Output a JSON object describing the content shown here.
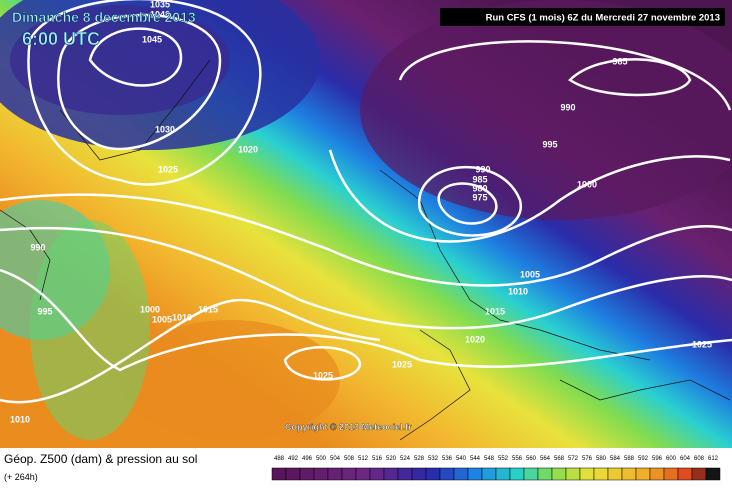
{
  "header": {
    "date": "Dimanche 8 decembre 2013",
    "time": "6:00 UTC",
    "run": "Run CFS (1 mois) 6Z du Mercredi 27 novembre 2013"
  },
  "isobar_labels": [
    "1035",
    "1040",
    "1045",
    "1030",
    "1025",
    "1020",
    "990",
    "995",
    "1000",
    "1005",
    "1010",
    "1015",
    "1025",
    "1025",
    "1010",
    "985",
    "990",
    "995",
    "1000",
    "990",
    "985",
    "980",
    "975",
    "1005",
    "1010",
    "1015",
    "1020",
    "1025"
  ],
  "footer": {
    "copyright": "Copyright © 2013 Meteociel.fr"
  },
  "legend": {
    "title": "Géop. Z500 (dam) & pression au sol",
    "lead": "(+ 264h)",
    "scale": [
      488,
      492,
      496,
      500,
      504,
      508,
      512,
      516,
      520,
      524,
      528,
      532,
      536,
      540,
      544,
      548,
      552,
      556,
      560,
      564,
      568,
      572,
      576,
      580,
      584,
      588,
      592,
      596,
      600,
      604,
      608,
      612
    ]
  }
}
